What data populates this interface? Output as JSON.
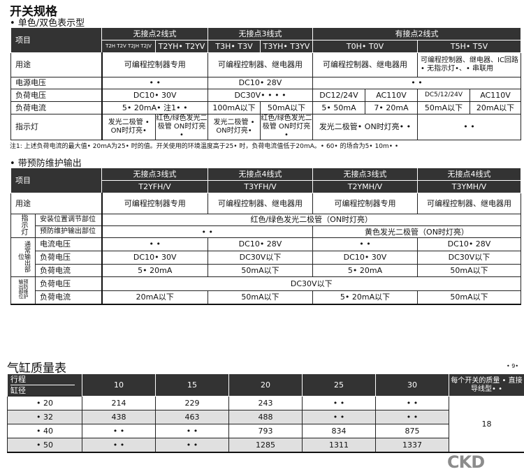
{
  "title": "开关规格",
  "section1": {
    "subtitle": "• 单色/双色表示型",
    "header": {
      "item": "项目",
      "groups": [
        "无接点2线式",
        "无接点3线式",
        "有接点2线式"
      ],
      "models": [
        "T2H T2V T2JH T2JV",
        "T2YH• T2YV",
        "T3H• T3V",
        "T3YH• T3YV",
        "T0H• T0V",
        "T5H• T5V"
      ]
    },
    "rows": {
      "use": {
        "label": "用途",
        "v": [
          "可编程控制器专用",
          "可编程控制器、继电器用",
          "可编程控制器、继电器用",
          "可编程控制器、继电器、IC回路• 无指示灯•、• 串联用"
        ]
      },
      "supply": {
        "label": "电源电压",
        "v": [
          "• •",
          "DC10• 28V",
          "• •"
        ]
      },
      "load_v": {
        "label": "负荷电压",
        "v": [
          "DC10• 30V",
          "DC30V• • • •",
          "DC12/24V",
          "AC110V",
          "DC5/12/24V",
          "AC110V"
        ]
      },
      "load_i": {
        "label": "负荷电流",
        "v": [
          "5• 20mA• 注1• •",
          "100mA以下",
          "50mA以下",
          "5• 50mA",
          "7• 20mA",
          "50mA以下",
          "20mA以下"
        ]
      },
      "lamp": {
        "label": "指示灯",
        "v": [
          "发光二极管 • ON时灯亮•",
          "红色/绿色发光二极管 ON时灯亮•",
          "发光二极管 • ON时灯亮•",
          "红色/绿色发光二极管 ON时灯亮•",
          "发光二极管• ON时灯亮• •",
          "• •"
        ]
      }
    },
    "note": "注1: 上述负荷电流的最大值• 20mA为25• 时的值。开关使用的环境温度高于25• 时，负荷电流值低于20mA。• 60• 的场合为5• 10m• •"
  },
  "section2": {
    "subtitle": "• 带预防维护输出",
    "header": {
      "item": "项目",
      "groups": [
        "无接点3线式",
        "无接点4线式",
        "无接点3线式",
        "无接点4线式"
      ],
      "models": [
        "T2YFH/V",
        "T3YFH/V",
        "T2YMH/V",
        "T3YMH/V"
      ]
    },
    "use": {
      "label": "用途",
      "v": [
        "可编程控制器专用",
        "可编程控制器、继电器用",
        "可编程控制器专用",
        "可编程控制器、继电器用"
      ]
    },
    "lamp": {
      "group": "指示灯",
      "r1": {
        "label": "安装位置调节部位",
        "v": "红色/绿色发光二极管（ON时灯亮）"
      },
      "r2": {
        "label": "预防维护输出部位",
        "v": [
          "• •",
          "黄色发光二极管（ON时灯亮）"
        ]
      }
    },
    "normal": {
      "group": "通常输出部位",
      "rows": [
        {
          "label": "电流电压",
          "v": [
            "• •",
            "DC10• 28V",
            "• •",
            "DC10• 28V"
          ]
        },
        {
          "label": "负荷电压",
          "v": [
            "DC10• 30V",
            "DC30V以下",
            "DC10• 30V",
            "DC30V以下"
          ]
        },
        {
          "label": "负荷电流",
          "v": [
            "5• 20mA",
            "50mA以下",
            "5• 20mA",
            "50mA以下"
          ]
        }
      ]
    },
    "maint": {
      "group": "预防维护输出部位",
      "rows": [
        {
          "label": "负荷电压",
          "v": [
            "DC30V以下"
          ]
        },
        {
          "label": "负荷电流",
          "v": [
            "20mA以下",
            "50mA以下",
            "5• 20mA以下",
            "50mA以下"
          ]
        }
      ]
    }
  },
  "weight": {
    "title": "气缸质量表",
    "stroke_label": "行程",
    "bore_label": "缸径",
    "strokes": [
      "10",
      "15",
      "20",
      "25",
      "30"
    ],
    "switch_header": "每个开关的质量 • 直接导线型• •",
    "switch_value": "18",
    "rows": [
      {
        "bore": "• 20",
        "v": [
          "214",
          "229",
          "243",
          "• •",
          "• •"
        ]
      },
      {
        "bore": "• 32",
        "v": [
          "438",
          "463",
          "488",
          "• •",
          "• •"
        ]
      },
      {
        "bore": "• 40",
        "v": [
          "• •",
          "• •",
          "793",
          "834",
          "875"
        ]
      },
      {
        "bore": "• 50",
        "v": [
          "• •",
          "• •",
          "1285",
          "1311",
          "1337"
        ]
      }
    ]
  },
  "page_number": "• 9•",
  "logo": "CKD"
}
